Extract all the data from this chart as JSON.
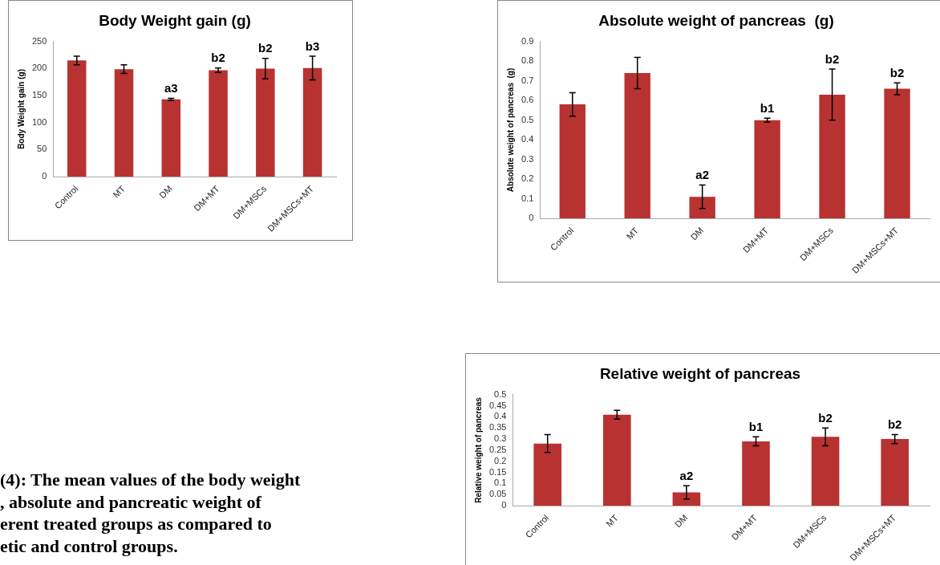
{
  "chart_data": [
    {
      "type": "bar",
      "title": "Body Weight gain (g)",
      "ylabel": "Body Weight gain (g)",
      "categories": [
        "Control",
        "MT",
        "DM",
        "DM+MT",
        "DM+MSCs",
        "DM+MSCs+MT"
      ],
      "color": "#b83232",
      "values": [
        215,
        199,
        143,
        197,
        200,
        201
      ],
      "errors": [
        8,
        8,
        2,
        4,
        19,
        22
      ],
      "ylim": [
        0,
        250
      ],
      "yticks": [
        0,
        50,
        100,
        150,
        200,
        250
      ],
      "grid": false,
      "legend": false,
      "annotations": [
        {
          "text": "a3",
          "x": "DM",
          "y": 143
        },
        {
          "text": "b2",
          "x": "DM+MT",
          "y": 197
        },
        {
          "text": "b2",
          "x": "DM+MSCs",
          "y": 200
        },
        {
          "text": "b3",
          "x": "DM+MSCs+MT",
          "y": 201
        }
      ]
    },
    {
      "type": "bar",
      "title": "Absolute weight of pancreas  (g)",
      "ylabel": "Absolute weight of pancreas  (g)",
      "categories": [
        "Control",
        "MT",
        "DM",
        "DM+MT",
        "DM+MSCs",
        "DM+MSCs+MT"
      ],
      "color": "#b83232",
      "values": [
        0.58,
        0.74,
        0.11,
        0.5,
        0.63,
        0.66
      ],
      "errors": [
        0.06,
        0.08,
        0.06,
        0.01,
        0.13,
        0.03
      ],
      "ylim": [
        0,
        0.9
      ],
      "yticks": [
        0,
        0.1,
        0.2,
        0.3,
        0.4,
        0.5,
        0.6,
        0.7,
        0.8,
        0.9
      ],
      "grid": false,
      "legend": false,
      "annotations": [
        {
          "text": "a2",
          "x": "DM",
          "y": 0.11
        },
        {
          "text": "b1",
          "x": "DM+MT",
          "y": 0.5
        },
        {
          "text": "b2",
          "x": "DM+MSCs",
          "y": 0.63
        },
        {
          "text": "b2",
          "x": "DM+MSCs+MT",
          "y": 0.66
        }
      ]
    },
    {
      "type": "bar",
      "title": "Relative weight of pancreas",
      "ylabel": "Relative weight of pancreas",
      "categories": [
        "Control",
        "MT",
        "DM",
        "DM+MT",
        "DM+MSCs",
        "DM+MSCs+MT"
      ],
      "color": "#b83232",
      "values": [
        0.28,
        0.41,
        0.06,
        0.29,
        0.31,
        0.3
      ],
      "errors": [
        0.04,
        0.02,
        0.03,
        0.02,
        0.04,
        0.02
      ],
      "ylim": [
        0,
        0.5
      ],
      "yticks": [
        0,
        0.05,
        0.1,
        0.15,
        0.2,
        0.25,
        0.3,
        0.35,
        0.4,
        0.45,
        0.5
      ],
      "grid": false,
      "legend": false,
      "annotations": [
        {
          "text": "a2",
          "x": "DM",
          "y": 0.06
        },
        {
          "text": "b1",
          "x": "DM+MT",
          "y": 0.29
        },
        {
          "text": "b2",
          "x": "DM+MSCs",
          "y": 0.31
        },
        {
          "text": "b2",
          "x": "DM+MSCs+MT",
          "y": 0.3
        }
      ]
    },
    {
      "type": "other",
      "annotations": [
        "(4): The mean values of the body weight",
        ", absolute and pancreatic weight of",
        "erent treated groups as compared to",
        "etic and control groups."
      ]
    }
  ]
}
